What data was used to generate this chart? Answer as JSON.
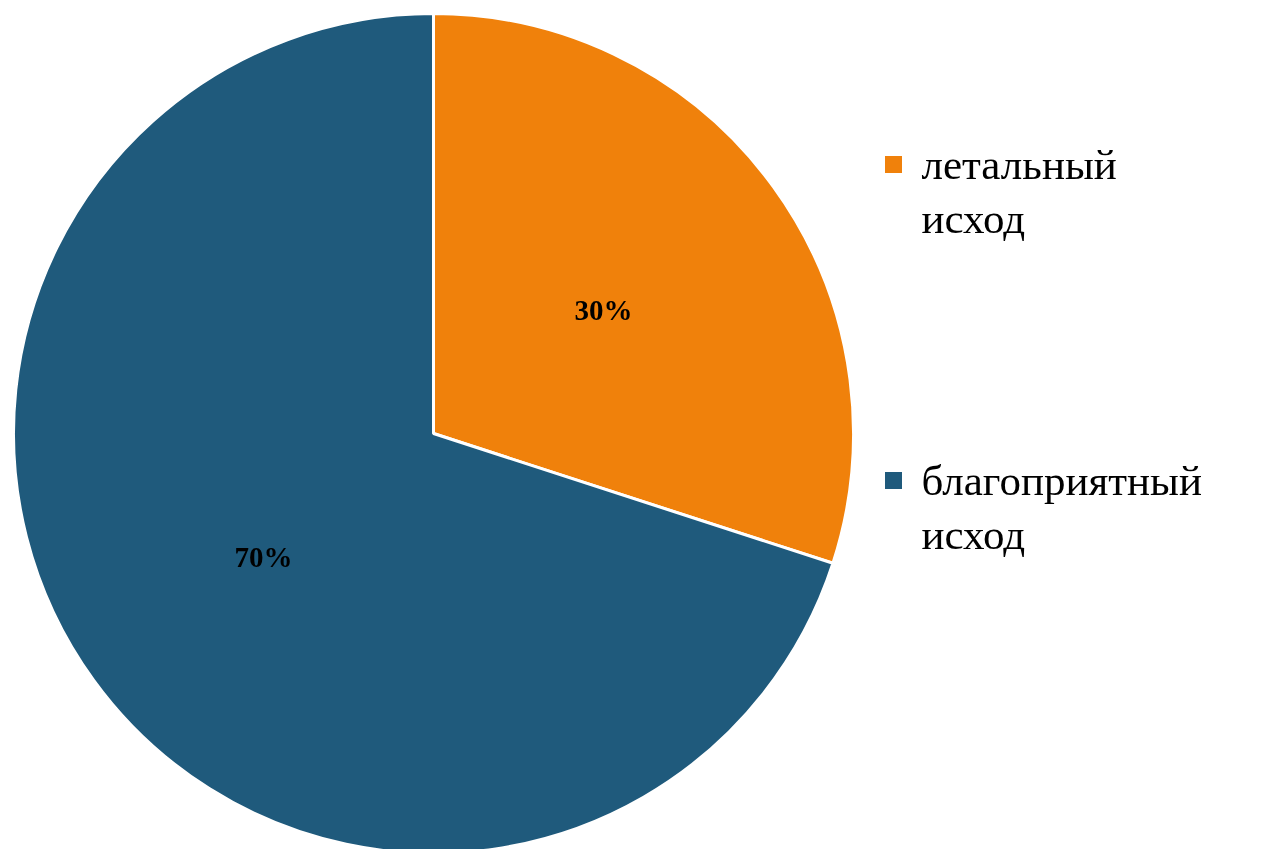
{
  "chart_data": {
    "type": "pie",
    "categories": [
      "летальный исход",
      "благоприятный исход"
    ],
    "values": [
      30,
      70
    ],
    "colors": [
      "#f0810b",
      "#1f5a7c"
    ],
    "value_labels": [
      "30%",
      "70%"
    ],
    "legend": "right"
  }
}
